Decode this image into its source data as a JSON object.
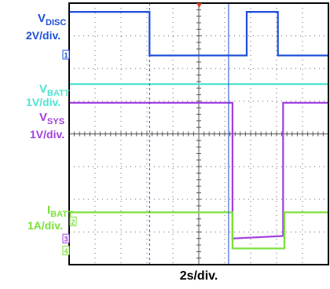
{
  "chart_data": {
    "type": "line",
    "time_scale": "2s/div.",
    "divisions": {
      "x": 10,
      "y": 8
    },
    "grid": "dotted",
    "series": [
      {
        "name": "V_DISC",
        "label_main": "V",
        "label_sub": "DISC",
        "scale": "2V/div.",
        "color": "#1d4fd8",
        "marker": "1",
        "points": [
          [
            0,
            0.35
          ],
          [
            3.1,
            0.35
          ],
          [
            3.1,
            2.1
          ],
          [
            6.85,
            2.1
          ],
          [
            6.85,
            0.35
          ],
          [
            8.05,
            0.35
          ],
          [
            8.05,
            2.1
          ],
          [
            10,
            2.1
          ]
        ]
      },
      {
        "name": "V_BATT",
        "label_main": "V",
        "label_sub": "BATT",
        "scale": "1V/div.",
        "color": "#4fe3d2",
        "marker": "",
        "points": [
          [
            0,
            3.25
          ],
          [
            10,
            3.25
          ]
        ]
      },
      {
        "name": "V_SYS",
        "label_main": "V",
        "label_sub": "SYS",
        "scale": "1V/div.",
        "color": "#a040e0",
        "marker": "3",
        "points": [
          [
            0,
            4.0
          ],
          [
            6.3,
            4.0
          ],
          [
            6.3,
            9.45
          ],
          [
            8.25,
            9.35
          ],
          [
            8.25,
            4.0
          ],
          [
            10,
            4.0
          ]
        ]
      },
      {
        "name": "I_BATT",
        "label_main": "I",
        "label_sub": "BATT",
        "scale": "1A/div.",
        "color": "#7be03c",
        "marker": "2",
        "points": [
          [
            0,
            8.4
          ],
          [
            6.3,
            8.4
          ],
          [
            6.3,
            9.85
          ],
          [
            8.3,
            9.85
          ],
          [
            8.3,
            8.4
          ],
          [
            10,
            8.4
          ]
        ]
      }
    ],
    "markers": {
      "ch4": "4"
    }
  }
}
